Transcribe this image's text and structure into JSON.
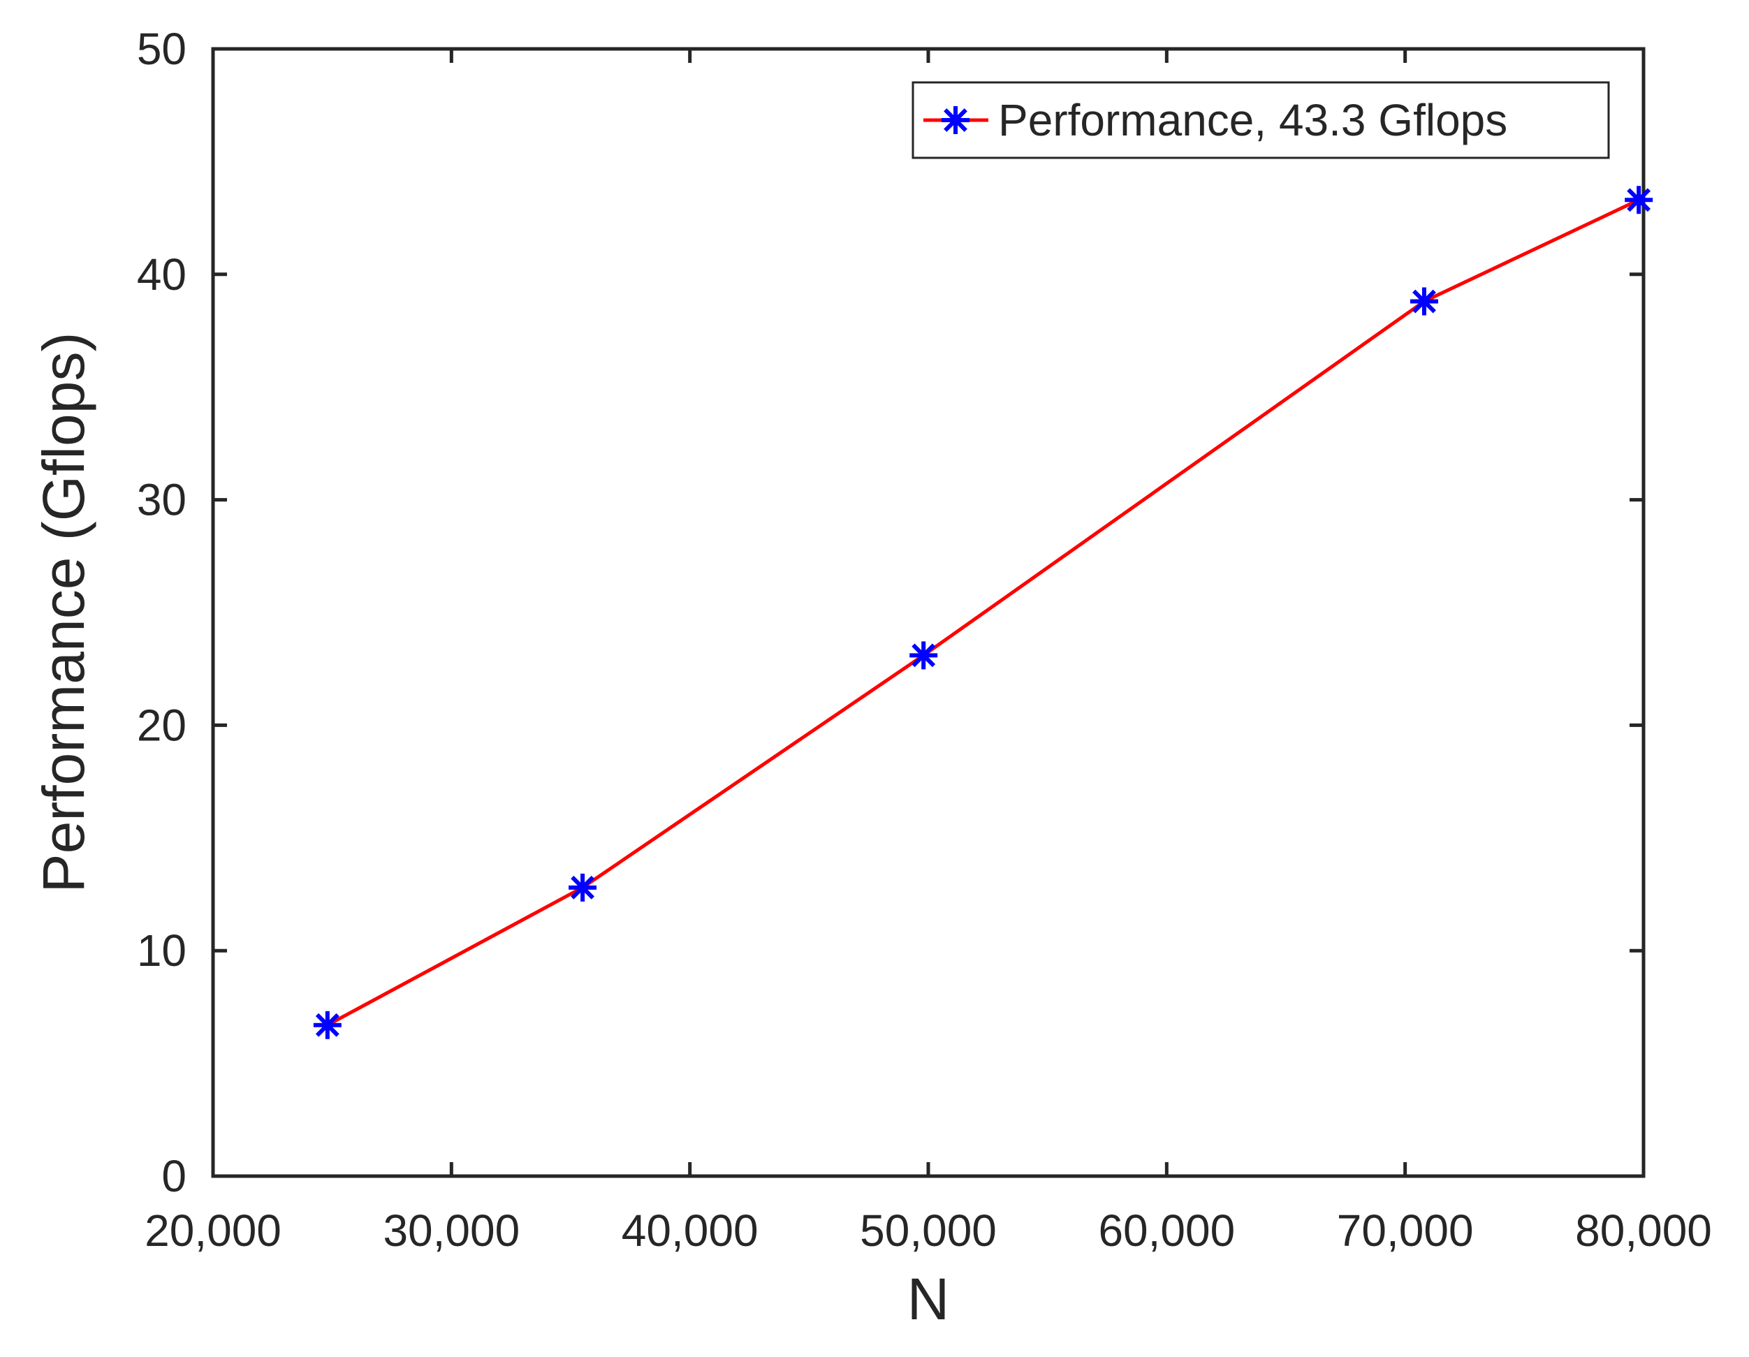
{
  "chart_data": {
    "type": "line",
    "title": "",
    "xlabel": "N",
    "ylabel": "Performance (Gflops)",
    "xlim": [
      20000,
      80000
    ],
    "ylim": [
      0,
      50
    ],
    "x_ticks": [
      20000,
      30000,
      40000,
      50000,
      60000,
      70000,
      80000
    ],
    "x_tick_labels": [
      "20,000",
      "30,000",
      "40,000",
      "50,000",
      "60,000",
      "70,000",
      "80,000"
    ],
    "y_ticks": [
      0,
      10,
      20,
      30,
      40,
      50
    ],
    "y_tick_labels": [
      "0",
      "10",
      "20",
      "30",
      "40",
      "50"
    ],
    "grid": false,
    "legend_position": "top-right",
    "series": [
      {
        "name": "Performance, 43.3 Gflops",
        "line_color": "#ff0000",
        "marker_color": "#0000ff",
        "marker": "asterisk",
        "x": [
          24800,
          35500,
          49800,
          70800,
          79800
        ],
        "y": [
          6.7,
          12.8,
          23.1,
          38.8,
          43.3
        ]
      }
    ]
  }
}
